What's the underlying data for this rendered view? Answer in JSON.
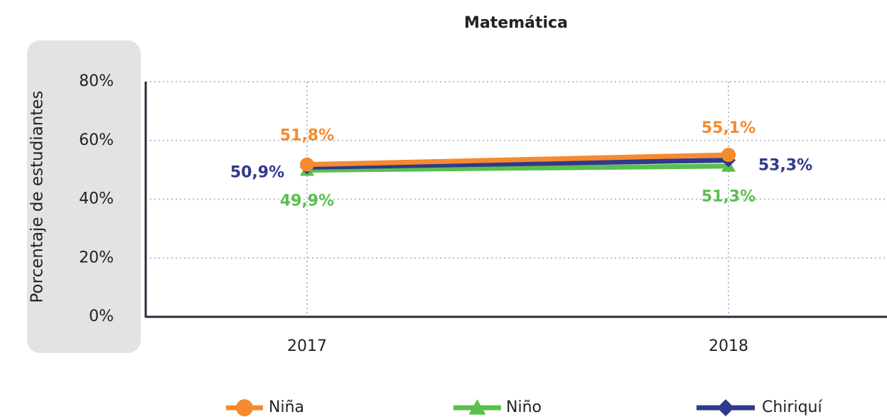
{
  "chart_data": {
    "type": "line",
    "title": "Matemática",
    "y_label": "Porcentaje de estudiantes",
    "categories": [
      "2017",
      "2018"
    ],
    "series": [
      {
        "name": "Niña",
        "color": "#f58a2e",
        "marker": "circle",
        "values": [
          51.8,
          55.1
        ],
        "value_labels": [
          "51,8%",
          "55,1%"
        ]
      },
      {
        "name": "Niño",
        "color": "#5bbf4e",
        "marker": "triangle",
        "values": [
          49.9,
          51.3
        ],
        "value_labels": [
          "49,9%",
          "51,3%"
        ]
      },
      {
        "name": "Chiriquí",
        "color": "#2e3a8c",
        "marker": "diamond",
        "values": [
          50.9,
          53.3
        ],
        "value_labels": [
          "50,9%",
          "53,3%"
        ]
      }
    ],
    "ylim": [
      0,
      80
    ],
    "yticks": [
      {
        "value": 0,
        "label": "0%"
      },
      {
        "value": 20,
        "label": "20%"
      },
      {
        "value": 40,
        "label": "40%"
      },
      {
        "value": 60,
        "label": "60%"
      },
      {
        "value": 80,
        "label": "80%"
      }
    ],
    "grid": true
  }
}
